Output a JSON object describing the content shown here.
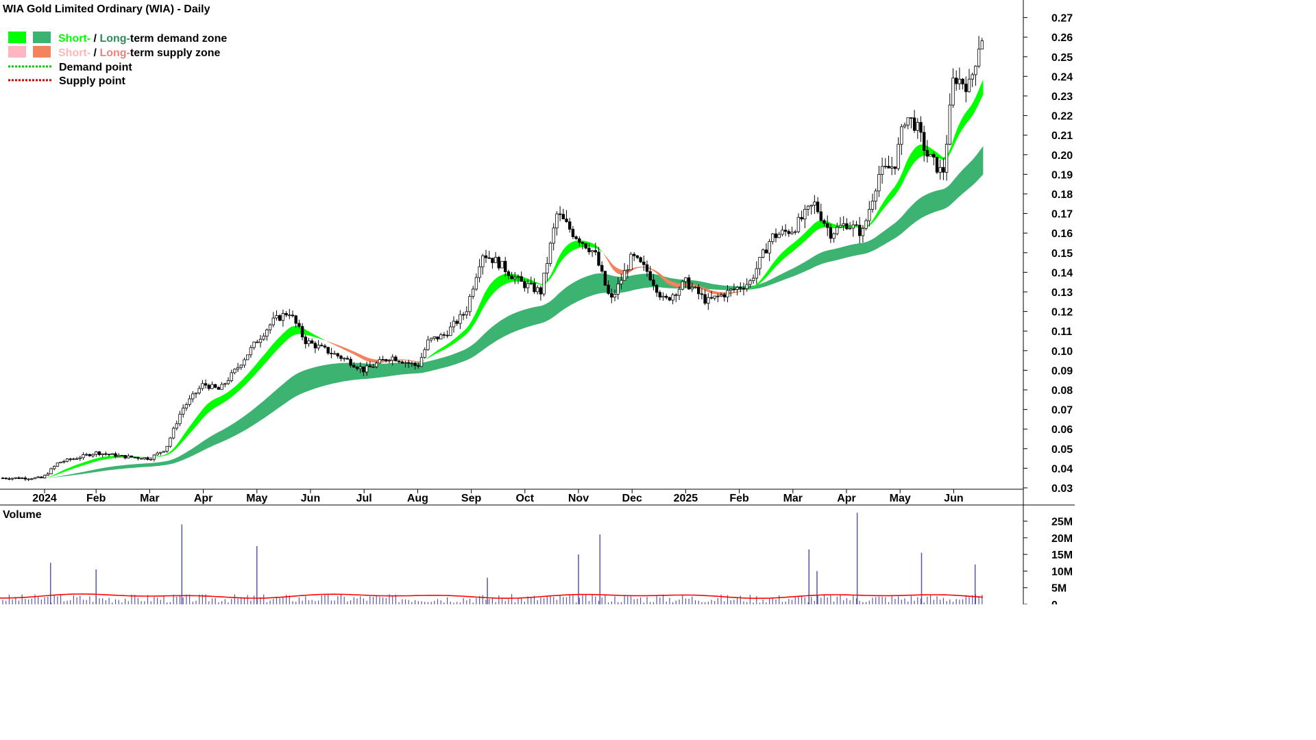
{
  "chart_data": {
    "type": "candlestick",
    "title": "WIA Gold Limited Ordinary (WIA) - Daily",
    "legend": [
      {
        "short": "Short-",
        "sep": " / ",
        "long": "Long-",
        "rest": "term demand zone",
        "short_color": "#00ff00",
        "long_color": "#2e8b57"
      },
      {
        "short": "Short-",
        "sep": " / ",
        "long": "Long-",
        "rest": "term supply zone",
        "short_color": "#ffb6b6",
        "long_color": "#f08080"
      },
      {
        "label": "Demand point",
        "color": "#00cc00"
      },
      {
        "label": "Supply point",
        "color": "#cc0000"
      }
    ],
    "colors": {
      "short_demand": "#00ff00",
      "long_demand": "#3cb371",
      "short_supply": "#ffb6c1",
      "long_supply": "#f4825c",
      "candle": "#000000",
      "volume_bar": "#5555aa",
      "volume_avg": "#ff0000"
    },
    "y_axis": {
      "ticks": [
        "0.27",
        "0.26",
        "0.25",
        "0.24",
        "0.23",
        "0.22",
        "0.21",
        "0.20",
        "0.19",
        "0.18",
        "0.17",
        "0.16",
        "0.15",
        "0.14",
        "0.13",
        "0.12",
        "0.11",
        "0.10",
        "0.09",
        "0.08",
        "0.07",
        "0.06",
        "0.05",
        "0.04",
        "0.03"
      ],
      "ylim": [
        0.024,
        0.275
      ],
      "tick_step": 0.01
    },
    "x_axis": {
      "ticks": [
        "2024",
        "Feb",
        "Mar",
        "Apr",
        "May",
        "Jun",
        "Jul",
        "Aug",
        "Sep",
        "Oct",
        "Nov",
        "Dec",
        "2025",
        "Feb",
        "Mar",
        "Apr",
        "May",
        "Jun"
      ]
    },
    "price_path": {
      "x_months": [
        0,
        0.3,
        0.6,
        1.0,
        1.5,
        2.0,
        2.3,
        2.6,
        3.0,
        3.3,
        3.6,
        4.0,
        4.3,
        4.6,
        4.9,
        5.3,
        5.7,
        6.0,
        6.5,
        7.0,
        7.2,
        7.5,
        7.9,
        8.2,
        8.5,
        8.9,
        9.3,
        9.6,
        9.9,
        10.3,
        10.6,
        11.0,
        11.3,
        11.6,
        12.0,
        12.4,
        12.8,
        13.2,
        13.6,
        14.0,
        14.4,
        14.7,
        15.0,
        15.3,
        15.6,
        15.9,
        16.1,
        16.3,
        16.5,
        16.8,
        17.0,
        17.3,
        17.5
      ],
      "close": [
        0.035,
        0.043,
        0.045,
        0.048,
        0.046,
        0.045,
        0.05,
        0.07,
        0.083,
        0.08,
        0.09,
        0.105,
        0.115,
        0.12,
        0.105,
        0.1,
        0.095,
        0.09,
        0.097,
        0.092,
        0.105,
        0.108,
        0.12,
        0.15,
        0.145,
        0.135,
        0.13,
        0.17,
        0.16,
        0.15,
        0.125,
        0.148,
        0.14,
        0.125,
        0.135,
        0.125,
        0.13,
        0.135,
        0.158,
        0.162,
        0.175,
        0.16,
        0.165,
        0.16,
        0.19,
        0.195,
        0.22,
        0.215,
        0.2,
        0.19,
        0.24,
        0.235,
        0.26
      ]
    },
    "volume": {
      "label": "Volume",
      "ticks": [
        "25M",
        "20M",
        "15M",
        "10M",
        "5M",
        "0"
      ],
      "ylim": [
        0,
        28
      ],
      "avg_millions": 2.5,
      "spikes": [
        {
          "x_months": 0.15,
          "v": 12.5
        },
        {
          "x_months": 1.0,
          "v": 10.5
        },
        {
          "x_months": 2.6,
          "v": 24.0
        },
        {
          "x_months": 4.0,
          "v": 17.5
        },
        {
          "x_months": 8.3,
          "v": 8.0
        },
        {
          "x_months": 10.0,
          "v": 15.0
        },
        {
          "x_months": 10.4,
          "v": 21.0
        },
        {
          "x_months": 14.3,
          "v": 16.5
        },
        {
          "x_months": 14.45,
          "v": 10.0
        },
        {
          "x_months": 15.2,
          "v": 27.5
        },
        {
          "x_months": 16.4,
          "v": 15.5
        },
        {
          "x_months": 17.4,
          "v": 12.0
        }
      ]
    }
  }
}
